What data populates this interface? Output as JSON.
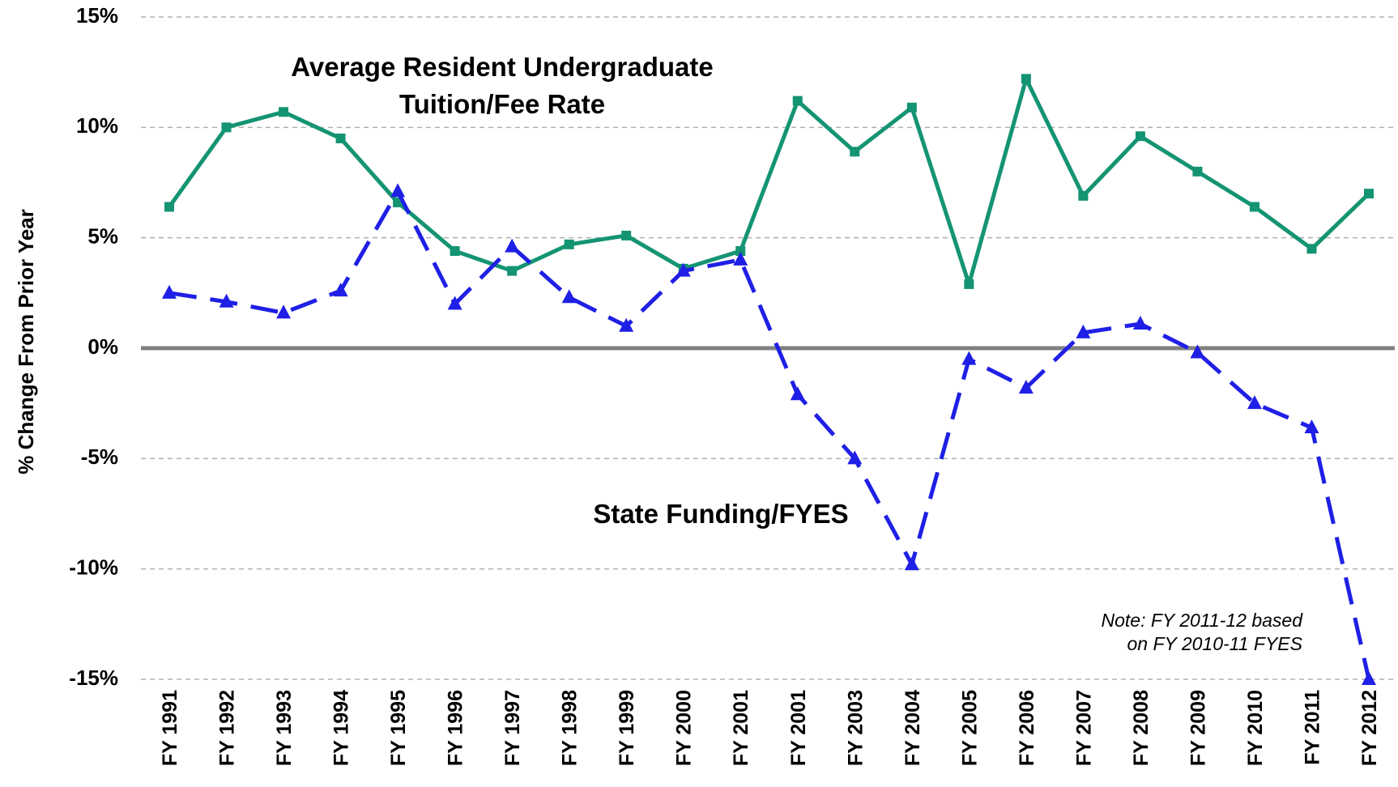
{
  "chart_data": {
    "type": "line",
    "ylabel": "% Change From Prior Year",
    "categories": [
      "FY 1991",
      "FY 1992",
      "FY 1993",
      "FY 1994",
      "FY 1995",
      "FY 1996",
      "FY 1997",
      "FY 1998",
      "FY 1999",
      "FY 2000",
      "FY 2001",
      "FY 2001",
      "FY 2003",
      "FY 2004",
      "FY 2005",
      "FY 2006",
      "FY 2007",
      "FY 2008",
      "FY 2009",
      "FY 2010",
      "FY 2011",
      "FY 2012"
    ],
    "series": [
      {
        "name": "Average Resident Undergraduate Tuition/Fee Rate",
        "color": "#149473",
        "marker": "square",
        "dashed": false,
        "values": [
          6.4,
          10.0,
          10.7,
          9.5,
          6.6,
          4.4,
          3.5,
          4.7,
          5.1,
          3.6,
          4.4,
          11.2,
          8.9,
          10.9,
          2.9,
          12.2,
          6.9,
          9.6,
          8.0,
          6.4,
          4.5,
          7.0
        ]
      },
      {
        "name": "State Funding/FYES",
        "color": "#1f1fe6",
        "marker": "triangle",
        "dashed": true,
        "values": [
          2.5,
          2.1,
          1.6,
          2.6,
          7.1,
          2.0,
          4.6,
          2.3,
          1.0,
          3.5,
          4.0,
          -2.1,
          -5.0,
          -9.8,
          -0.5,
          -1.8,
          0.7,
          1.1,
          -0.2,
          -2.5,
          -3.6,
          -15.0
        ]
      }
    ],
    "ylim": [
      -15,
      15
    ],
    "yticks": [
      {
        "value": -15,
        "label": "-15%"
      },
      {
        "value": -10,
        "label": "-10%"
      },
      {
        "value": -5,
        "label": "-5%"
      },
      {
        "value": 0,
        "label": "0%"
      },
      {
        "value": 5,
        "label": "5%"
      },
      {
        "value": 10,
        "label": "10%"
      },
      {
        "value": 15,
        "label": "15%"
      }
    ],
    "grid": true,
    "note": [
      "Note: FY 2011-12 based",
      "on FY 2010-11 FYES"
    ]
  }
}
